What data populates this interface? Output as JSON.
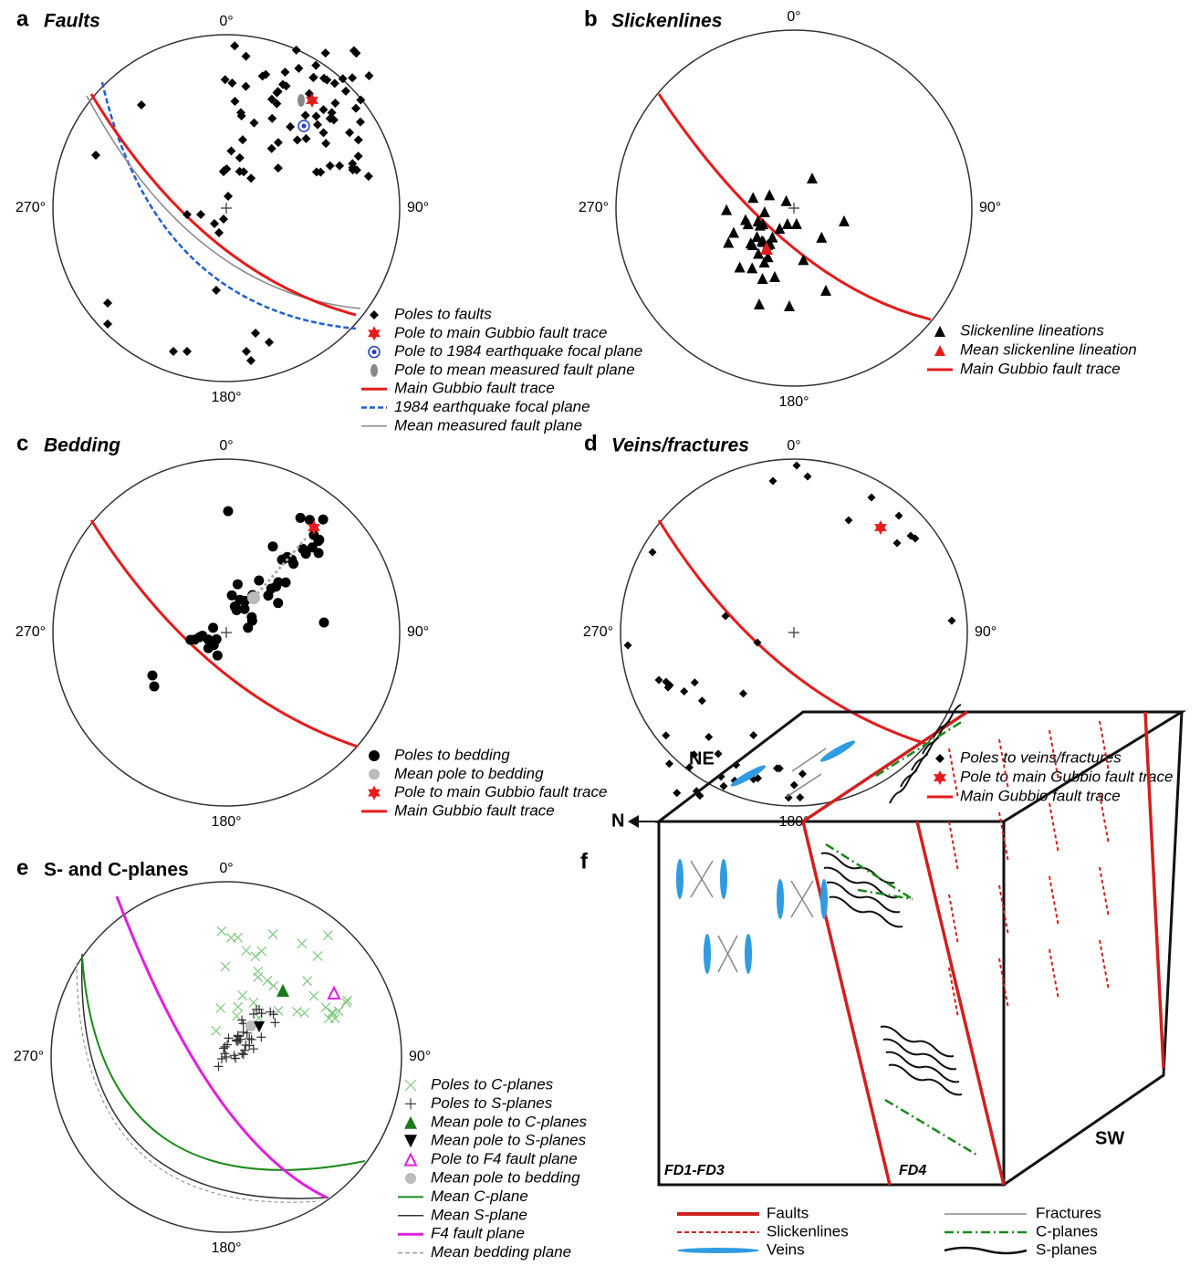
{
  "panels": [
    {
      "letter": "a",
      "title": "Faults",
      "directions": [
        "0°",
        "90°",
        "180°",
        "270°"
      ],
      "legend": [
        "Poles to faults",
        "Pole to main Gubbio fault trace",
        "Pole to 1984 earthquake focal plane",
        "Pole to mean measured fault plane",
        "Main Gubbio fault trace",
        "1984 earthquake focal plane",
        "Mean measured fault plane"
      ]
    },
    {
      "letter": "b",
      "title": "Slickenlines",
      "directions": [
        "0°",
        "90°",
        "180°",
        "270°"
      ],
      "legend": [
        "Slickenline lineations",
        "Mean slickenline lineation",
        "Main Gubbio fault trace"
      ]
    },
    {
      "letter": "c",
      "title": "Bedding",
      "directions": [
        "0°",
        "90°",
        "180°",
        "270°"
      ],
      "legend": [
        "Poles to bedding",
        "Mean pole to bedding",
        "Pole to main Gubbio fault trace",
        "Main Gubbio fault trace"
      ]
    },
    {
      "letter": "d",
      "title": "Veins/fractures",
      "directions": [
        "0°",
        "90°",
        "180°",
        "270°"
      ],
      "legend": [
        "Poles to veins/fractures",
        "Pole to main Gubbio fault trace",
        "Main Gubbio fault trace"
      ]
    },
    {
      "letter": "e",
      "title": "S- and C-planes",
      "directions": [
        "0°",
        "90°",
        "180°",
        "270°"
      ],
      "legend": [
        "Poles to C-planes",
        "Poles to S-planes",
        "Mean pole to C-planes",
        "Mean pole to S-planes",
        "Pole to F4 fault plane",
        "Mean pole to bedding",
        "Mean C-plane",
        "Mean S-plane",
        "F4 fault plane",
        "Mean bedding plane"
      ]
    }
  ],
  "panel_f": {
    "letter": "f",
    "labels": {
      "ne": "NE",
      "n": "N",
      "sw": "SW",
      "fd13": "FD1-FD3",
      "fd4": "FD4"
    },
    "legend": [
      "Faults",
      "Slickenlines",
      "Veins",
      "Fractures",
      "C-planes",
      "S-planes"
    ]
  }
}
